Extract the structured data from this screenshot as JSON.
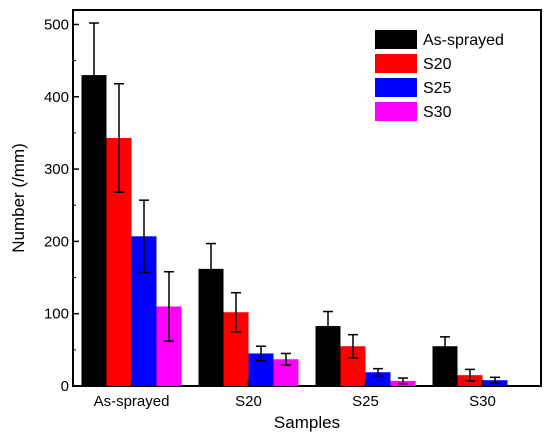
{
  "chart_data": {
    "type": "bar",
    "title": "",
    "xlabel": "Samples",
    "ylabel": "Number (/mm)",
    "ylim": [
      0,
      520
    ],
    "yticks": [
      0,
      100,
      200,
      300,
      400,
      500
    ],
    "categories": [
      "As-sprayed",
      "S20",
      "S25",
      "S30"
    ],
    "series": [
      {
        "name": "As-sprayed",
        "color": "#000000",
        "values": [
          430,
          162,
          83,
          55
        ],
        "errors": [
          72,
          35,
          20,
          13
        ]
      },
      {
        "name": "S20",
        "color": "#ff0000",
        "values": [
          343,
          102,
          55,
          15
        ],
        "errors": [
          75,
          27,
          16,
          8
        ]
      },
      {
        "name": "S25",
        "color": "#0000ff",
        "values": [
          207,
          45,
          19,
          8
        ],
        "errors": [
          50,
          10,
          5,
          4
        ]
      },
      {
        "name": "S30",
        "color": "#ff00ff",
        "values": [
          110,
          37,
          7,
          0
        ],
        "errors": [
          48,
          8,
          4,
          0
        ]
      }
    ],
    "legend_position": "top-right",
    "grid": false
  }
}
